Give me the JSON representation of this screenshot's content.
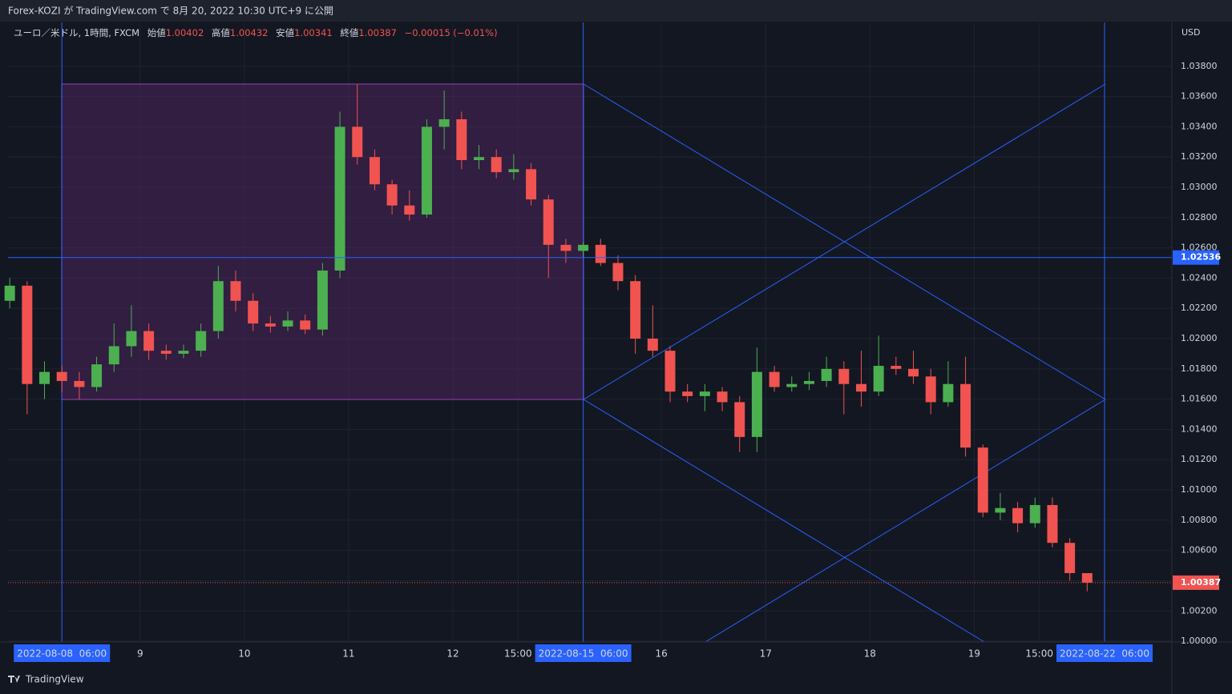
{
  "header": {
    "text": "Forex-KOZI が TradingView.com で 8月 20, 2022 10:30 UTC+9 に公開"
  },
  "footer": {
    "brand": "TradingView"
  },
  "chart_data": {
    "type": "candlestick",
    "title": "ユーロ／米ドル, 1時間, FXCM",
    "ohlc_legend": {
      "open_label": "始値",
      "open": 1.00402,
      "high_label": "高値",
      "high": 1.00432,
      "low_label": "安値",
      "low": 1.00341,
      "close_label": "終値",
      "close": 1.00387,
      "change": "−0.00015 (−0.01%)"
    },
    "currency": "USD",
    "up_color": "#4caf50",
    "down_color": "#f05350",
    "x": [
      -12,
      -8,
      -4,
      0,
      4,
      8,
      12,
      16,
      20,
      24,
      28,
      32,
      36,
      40,
      44,
      48,
      52,
      56,
      60,
      64,
      68,
      72,
      76,
      80,
      84,
      88,
      92,
      96,
      100,
      104,
      108,
      112,
      116,
      120,
      124,
      128,
      132,
      136,
      140,
      144,
      148,
      152,
      156,
      160,
      164,
      168,
      172,
      176,
      180,
      184,
      188,
      192,
      196,
      200,
      204,
      208,
      212,
      216,
      220,
      224,
      228,
      232,
      236
    ],
    "open": [
      1.0225,
      1.0235,
      1.017,
      1.0178,
      1.0172,
      1.0168,
      1.0183,
      1.0195,
      1.0205,
      1.0192,
      1.019,
      1.0192,
      1.0205,
      1.0238,
      1.0225,
      1.021,
      1.0208,
      1.0212,
      1.0206,
      1.0245,
      1.034,
      1.032,
      1.0302,
      1.0288,
      1.0282,
      1.034,
      1.0345,
      1.0318,
      1.032,
      1.031,
      1.0312,
      1.0292,
      1.0262,
      1.0258,
      1.0262,
      1.025,
      1.0238,
      1.02,
      1.0192,
      1.0165,
      1.0162,
      1.0165,
      1.0158,
      1.0135,
      1.0178,
      1.0168,
      1.017,
      1.0172,
      1.018,
      1.017,
      1.0165,
      1.0182,
      1.018,
      1.0175,
      1.0158,
      1.017,
      1.0128,
      1.0085,
      1.0088,
      1.0078,
      1.009,
      1.0065,
      1.0045
    ],
    "high": [
      1.024,
      1.0238,
      1.0185,
      1.0182,
      1.0178,
      1.0188,
      1.021,
      1.0222,
      1.021,
      1.0196,
      1.0196,
      1.021,
      1.0248,
      1.0245,
      1.023,
      1.0215,
      1.0218,
      1.0216,
      1.025,
      1.035,
      1.0368,
      1.0325,
      1.0305,
      1.0298,
      1.0345,
      1.0364,
      1.035,
      1.0328,
      1.0325,
      1.0322,
      1.0316,
      1.0295,
      1.0266,
      1.0264,
      1.0266,
      1.0255,
      1.0242,
      1.0222,
      1.0195,
      1.017,
      1.017,
      1.0168,
      1.0162,
      1.0194,
      1.0182,
      1.0175,
      1.0178,
      1.0188,
      1.0185,
      1.0192,
      1.0202,
      1.0188,
      1.0192,
      1.018,
      1.0185,
      1.0188,
      1.013,
      1.0098,
      1.0092,
      1.0095,
      1.0095,
      1.0068,
      1.0045
    ],
    "low": [
      1.022,
      1.015,
      1.016,
      1.0165,
      1.016,
      1.0165,
      1.0178,
      1.0188,
      1.0186,
      1.0186,
      1.0187,
      1.0188,
      1.02,
      1.0218,
      1.0205,
      1.0204,
      1.0205,
      1.0203,
      1.0202,
      1.024,
      1.0315,
      1.0298,
      1.0282,
      1.0278,
      1.028,
      1.0325,
      1.0312,
      1.0312,
      1.0306,
      1.0305,
      1.0288,
      1.024,
      1.025,
      1.0254,
      1.0248,
      1.0232,
      1.019,
      1.0188,
      1.0158,
      1.0158,
      1.0152,
      1.0152,
      1.0125,
      1.0125,
      1.0165,
      1.0165,
      1.0166,
      1.0168,
      1.015,
      1.0155,
      1.0162,
      1.0176,
      1.017,
      1.015,
      1.0155,
      1.0122,
      1.0082,
      1.008,
      1.0072,
      1.0075,
      1.0062,
      1.004,
      1.0033
    ],
    "close": [
      1.0235,
      1.017,
      1.0178,
      1.0172,
      1.0168,
      1.0183,
      1.0195,
      1.0205,
      1.0192,
      1.019,
      1.0192,
      1.0205,
      1.0238,
      1.0225,
      1.021,
      1.0208,
      1.0212,
      1.0206,
      1.0245,
      1.034,
      1.032,
      1.0302,
      1.0288,
      1.0282,
      1.034,
      1.0345,
      1.0318,
      1.032,
      1.031,
      1.0312,
      1.0292,
      1.0262,
      1.0258,
      1.0262,
      1.025,
      1.0238,
      1.02,
      1.0192,
      1.0165,
      1.0162,
      1.0165,
      1.0158,
      1.0135,
      1.0178,
      1.0168,
      1.017,
      1.0172,
      1.018,
      1.017,
      1.0165,
      1.0182,
      1.018,
      1.0175,
      1.0158,
      1.017,
      1.0128,
      1.0085,
      1.0088,
      1.0078,
      1.009,
      1.0065,
      1.0045,
      1.00387
    ],
    "xlim": [
      -12.4,
      255.5
    ],
    "xticks": [
      {
        "value": 0,
        "label": "2022-08-08  06:00"
      },
      {
        "value": 18,
        "label": "9"
      },
      {
        "value": 42,
        "label": "10"
      },
      {
        "value": 66,
        "label": "11"
      },
      {
        "value": 90,
        "label": "12"
      },
      {
        "value": 105,
        "label": "15:00"
      },
      {
        "value": 120,
        "label": "2022-08-15  06:00"
      },
      {
        "value": 138,
        "label": "16"
      },
      {
        "value": 162,
        "label": "17"
      },
      {
        "value": 186,
        "label": "18"
      },
      {
        "value": 210,
        "label": "19"
      },
      {
        "value": 225,
        "label": "15:00"
      },
      {
        "value": 240,
        "label": "2022-08-22  06:00"
      }
    ],
    "ylim": [
      0.99995,
      1.0409
    ],
    "yticks": [
      {
        "value": 1.0,
        "label": "1.00000"
      },
      {
        "value": 1.002,
        "label": "1.00200"
      },
      {
        "value": 1.004,
        "label": "1.00400"
      },
      {
        "value": 1.006,
        "label": "1.00600"
      },
      {
        "value": 1.008,
        "label": "1.00800"
      },
      {
        "value": 1.01,
        "label": "1.01000"
      },
      {
        "value": 1.012,
        "label": "1.01200"
      },
      {
        "value": 1.014,
        "label": "1.01400"
      },
      {
        "value": 1.016,
        "label": "1.01600"
      },
      {
        "value": 1.018,
        "label": "1.01800"
      },
      {
        "value": 1.02,
        "label": "1.02000"
      },
      {
        "value": 1.022,
        "label": "1.02200"
      },
      {
        "value": 1.024,
        "label": "1.02400"
      },
      {
        "value": 1.026,
        "label": "1.02600"
      },
      {
        "value": 1.028,
        "label": "1.02800"
      },
      {
        "value": 1.03,
        "label": "1.03000"
      },
      {
        "value": 1.032,
        "label": "1.03200"
      },
      {
        "value": 1.034,
        "label": "1.03400"
      },
      {
        "value": 1.036,
        "label": "1.03600"
      },
      {
        "value": 1.038,
        "label": "1.03800"
      }
    ],
    "horizontal_line": 1.02536,
    "last_price": 1.00387,
    "grid": true
  }
}
